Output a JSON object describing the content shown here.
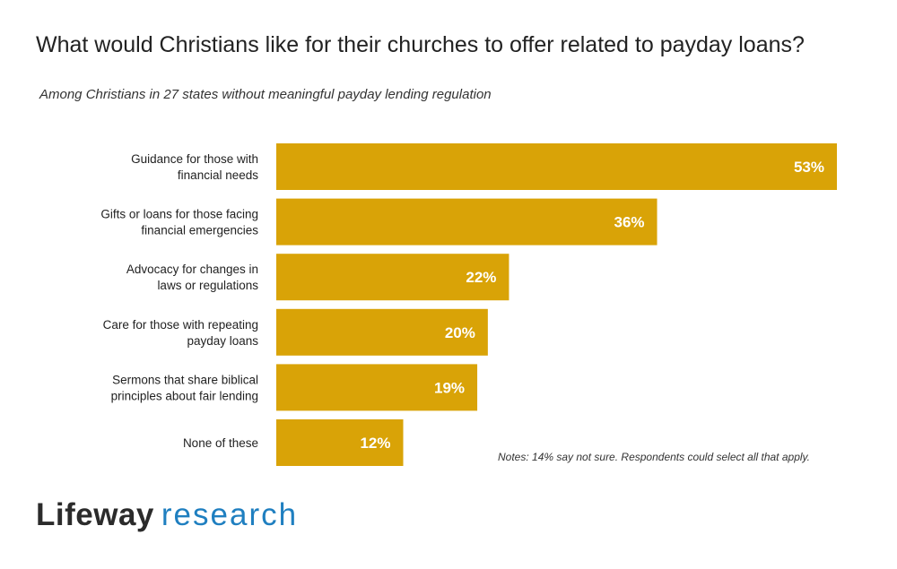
{
  "chart_data": {
    "type": "bar",
    "orientation": "horizontal",
    "title": "What would Christians like for their churches to offer related to payday loans?",
    "subtitle": "Among Christians in 27 states without meaningful payday lending regulation",
    "categories": [
      [
        "Guidance for those with",
        "financial needs"
      ],
      [
        "Gifts or loans for those facing",
        "financial emergencies"
      ],
      [
        "Advocacy for changes in",
        "laws or regulations"
      ],
      [
        "Care for those with repeating",
        "payday loans"
      ],
      [
        "Sermons that share biblical",
        "principles about fair lending"
      ],
      [
        "None of these"
      ]
    ],
    "values": [
      53,
      36,
      22,
      20,
      19,
      12
    ],
    "labels": [
      "53%",
      "36%",
      "22%",
      "20%",
      "19%",
      "12%"
    ],
    "unit": "%",
    "xlim": [
      0,
      53
    ],
    "grid": false,
    "bar_color": "#D9A307",
    "label_color": "#FFFFFF",
    "notes": "Notes: 14% say not sure. Respondents could select all that apply."
  },
  "logo": {
    "brand": "Lifeway",
    "sub": "research"
  }
}
